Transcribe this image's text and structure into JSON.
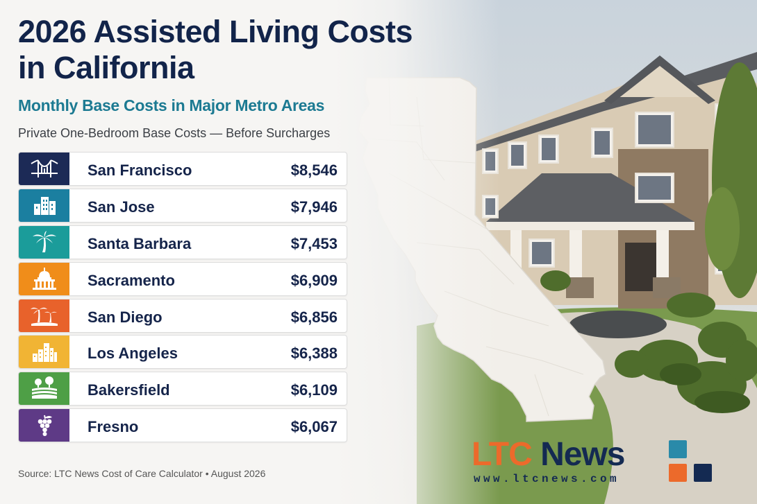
{
  "title": "2026 Assisted Living Costs in California",
  "subtitle": "Monthly Base Costs in Major Metro Areas",
  "description": "Private One-Bedroom Base Costs — Before Surcharges",
  "source": "Source: LTC News Cost of Care Calculator • August 2026",
  "logo": {
    "part1": "LTC",
    "part2": " News",
    "url": "www.ltcnews.com"
  },
  "colors": {
    "navy": "#1c2a56",
    "teal_blue": "#1b7fa0",
    "teal": "#1b9c9a",
    "orange": "#f08d1a",
    "orange_red": "#e8622b",
    "yellow": "#f1b434",
    "green": "#4e9f46",
    "purple": "#5e3a86"
  },
  "metros": [
    {
      "city": "San Francisco",
      "cost": "$8,546",
      "icon": "golden-gate-bridge-icon",
      "color": "#1c2a56"
    },
    {
      "city": "San Jose",
      "cost": "$7,946",
      "icon": "city-buildings-icon",
      "color": "#1b7fa0"
    },
    {
      "city": "Santa Barbara",
      "cost": "$7,453",
      "icon": "palm-tree-icon",
      "color": "#1b9c9a"
    },
    {
      "city": "Sacramento",
      "cost": "$6,909",
      "icon": "capitol-dome-icon",
      "color": "#f08d1a"
    },
    {
      "city": "San Diego",
      "cost": "$6,856",
      "icon": "beach-palms-icon",
      "color": "#e8622b"
    },
    {
      "city": "Los Angeles",
      "cost": "$6,388",
      "icon": "skyline-icon",
      "color": "#f1b434"
    },
    {
      "city": "Bakersfield",
      "cost": "$6,109",
      "icon": "farm-fields-icon",
      "color": "#4e9f46"
    },
    {
      "city": "Fresno",
      "cost": "$6,067",
      "icon": "grapes-icon",
      "color": "#5e3a86"
    }
  ]
}
